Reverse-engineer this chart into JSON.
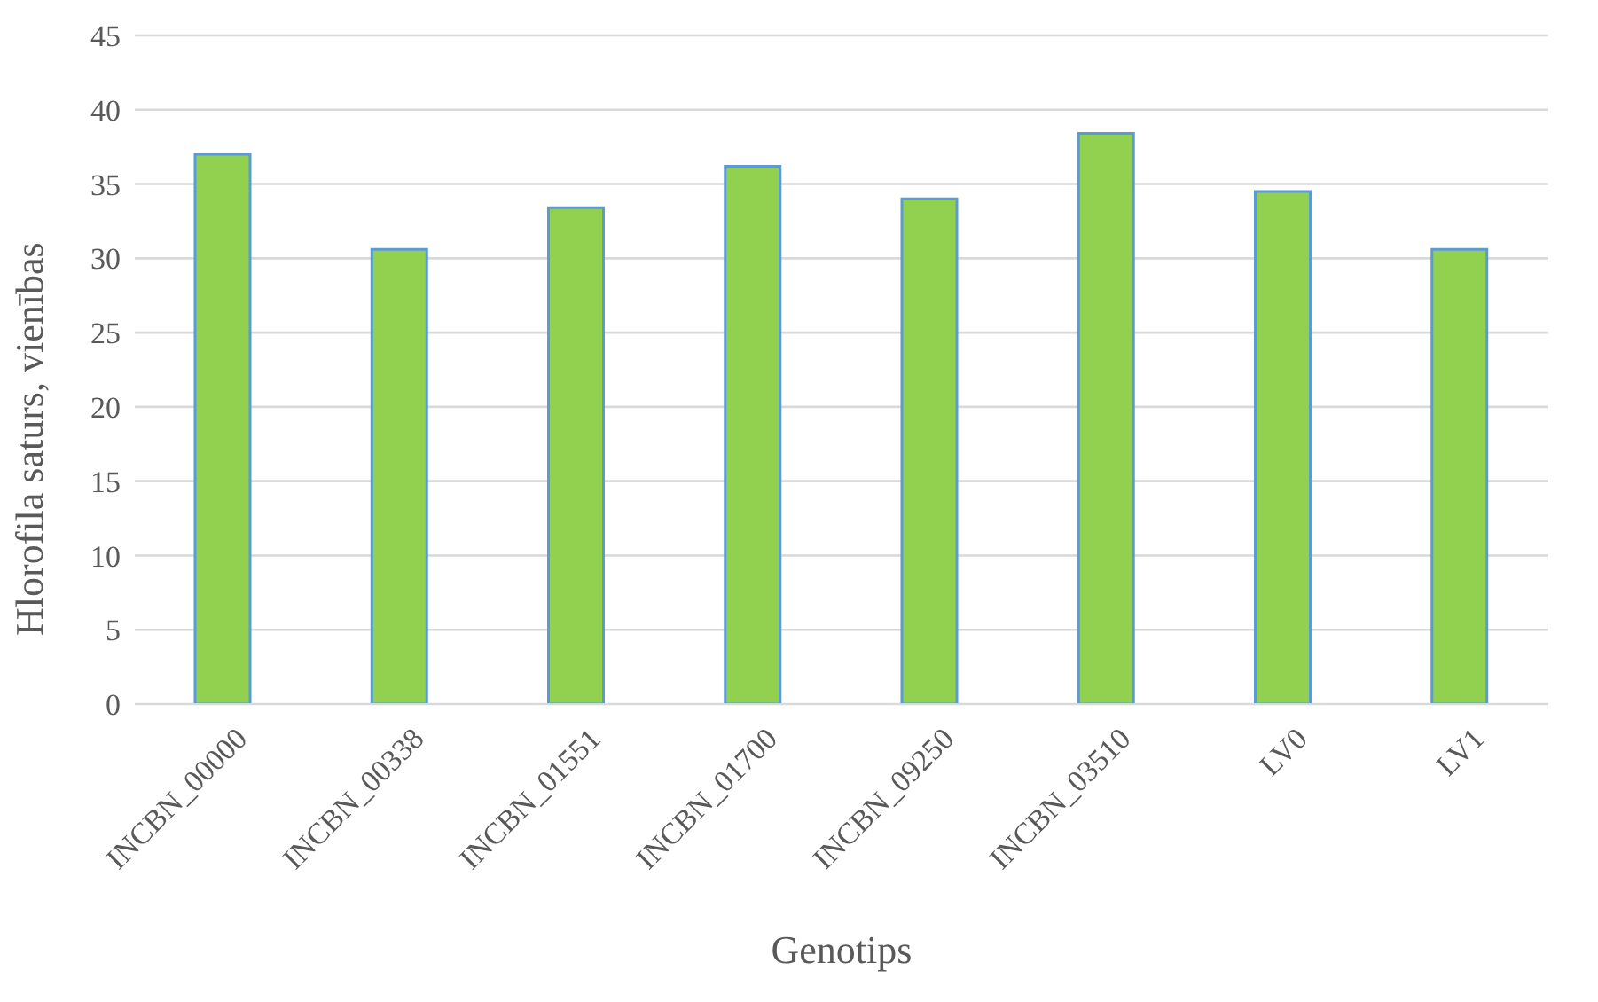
{
  "chart_data": {
    "type": "bar",
    "xlabel": "Genotips",
    "ylabel": "Hlorofila saturs, vienības",
    "categories": [
      "INCBN_00000",
      "INCBN_00338",
      "INCBN_01551",
      "INCBN_01700",
      "INCBN_09250",
      "INCBN_03510",
      "LV0",
      "LV1"
    ],
    "values": [
      37.0,
      30.6,
      33.4,
      36.2,
      34.0,
      38.4,
      34.5,
      30.6
    ],
    "color": "#92d050",
    "ylim": [
      0,
      45
    ],
    "yticks": [
      0,
      5,
      10,
      15,
      20,
      25,
      30,
      35,
      40,
      45
    ],
    "grid": "y"
  }
}
